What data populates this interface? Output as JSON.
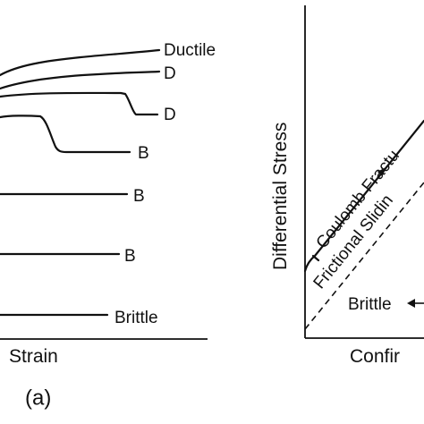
{
  "left_panel": {
    "curve_labels": [
      "Ductile",
      "D",
      "D",
      "B",
      "B",
      "B",
      "Brittle"
    ],
    "x_axis_label": "Strain",
    "panel_tag": "(a)"
  },
  "right_panel": {
    "y_axis_label": "Differential Stress",
    "x_axis_label": "Confir",
    "line_labels": {
      "coulomb": "Coulomb Fractu",
      "frictional": "Frictional Slidin"
    },
    "region_label": "Brittle"
  }
}
